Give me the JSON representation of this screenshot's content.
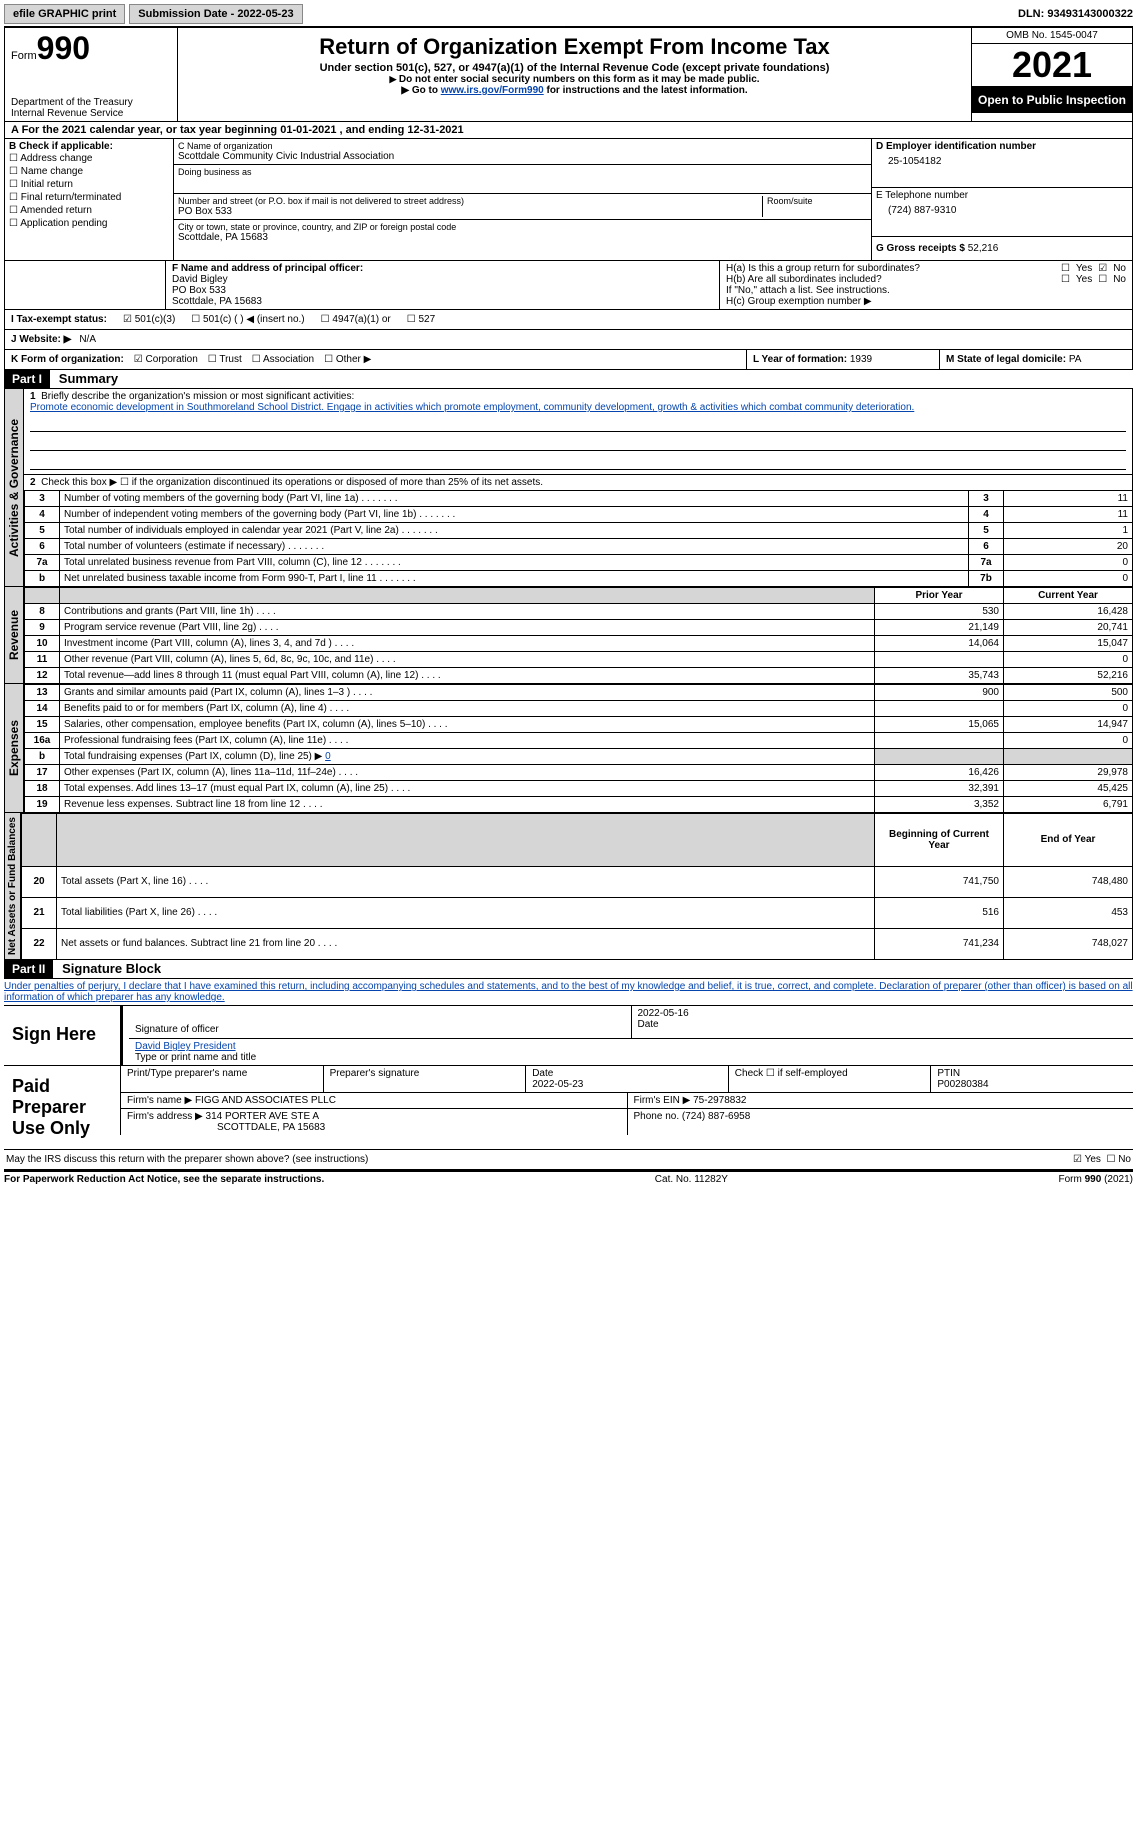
{
  "topbar": {
    "efile": "efile GRAPHIC print",
    "submission": "Submission Date - 2022-05-23",
    "dln_label": "DLN:",
    "dln": "93493143000322"
  },
  "header": {
    "form_word": "Form",
    "form_num": "990",
    "dept": "Department of the Treasury",
    "irs": "Internal Revenue Service",
    "title": "Return of Organization Exempt From Income Tax",
    "subtitle": "Under section 501(c), 527, or 4947(a)(1) of the Internal Revenue Code (except private foundations)",
    "note1": "Do not enter social security numbers on this form as it may be made public.",
    "note2_pre": "Go to ",
    "note2_link": "www.irs.gov/Form990",
    "note2_post": " for instructions and the latest information.",
    "omb": "OMB No. 1545-0047",
    "year": "2021",
    "open": "Open to Public Inspection"
  },
  "period": {
    "a_label": "A For the 2021 calendar year, or tax year beginning ",
    "begin": "01-01-2021",
    "mid": " , and ending ",
    "end": "12-31-2021"
  },
  "sectionB": {
    "title": "B Check if applicable:",
    "items": [
      "Address change",
      "Name change",
      "Initial return",
      "Final return/terminated",
      "Amended return",
      "Application pending"
    ]
  },
  "sectionC": {
    "name_lbl": "C Name of organization",
    "name": "Scottdale Community Civic Industrial Association",
    "dba_lbl": "Doing business as",
    "dba": "",
    "street_lbl": "Number and street (or P.O. box if mail is not delivered to street address)",
    "street": "PO Box 533",
    "room_lbl": "Room/suite",
    "city_lbl": "City or town, state or province, country, and ZIP or foreign postal code",
    "city": "Scottdale, PA  15683"
  },
  "sectionD": {
    "ein_lbl": "D Employer identification number",
    "ein": "25-1054182",
    "tel_lbl": "E Telephone number",
    "tel": "(724) 887-9310",
    "gross_lbl": "G Gross receipts $",
    "gross": "52,216"
  },
  "sectionF": {
    "lbl": "F Name and address of principal officer:",
    "name": "David Bigley",
    "addr1": "PO Box 533",
    "addr2": "Scottdale, PA  15683"
  },
  "sectionH": {
    "ha": "H(a)  Is this a group return for subordinates?",
    "hb": "H(b)  Are all subordinates included?",
    "hb_note": "If \"No,\" attach a list. See instructions.",
    "hc": "H(c)  Group exemption number ▶",
    "yes": "Yes",
    "no": "No"
  },
  "sectionI": {
    "lbl": "I  Tax-exempt status:",
    "opt1": "501(c)(3)",
    "opt2": "501(c) (  ) ◀ (insert no.)",
    "opt3": "4947(a)(1) or",
    "opt4": "527"
  },
  "sectionJ": {
    "lbl": "J  Website: ▶",
    "val": "N/A"
  },
  "sectionK": {
    "lbl": "K Form of organization:",
    "opts": [
      "Corporation",
      "Trust",
      "Association",
      "Other ▶"
    ]
  },
  "sectionL": {
    "lbl": "L Year of formation:",
    "val": "1939"
  },
  "sectionM": {
    "lbl": "M State of legal domicile:",
    "val": "PA"
  },
  "part1": {
    "hdr": "Part I",
    "title": "Summary",
    "line1_lbl": "Briefly describe the organization's mission or most significant activities:",
    "line1_txt": "Promote economic development in Southmoreland School District. Engage in activities which promote employment, community development, growth & activities which combat community deterioration.",
    "line2": "Check this box ▶ ☐ if the organization discontinued its operations or disposed of more than 25% of its net assets.",
    "tabs": {
      "act": "Activities & Governance",
      "rev": "Revenue",
      "exp": "Expenses",
      "net": "Net Assets or Fund Balances"
    },
    "rows_act": [
      {
        "n": "3",
        "t": "Number of voting members of the governing body (Part VI, line 1a)",
        "box": "3",
        "v": "11"
      },
      {
        "n": "4",
        "t": "Number of independent voting members of the governing body (Part VI, line 1b)",
        "box": "4",
        "v": "11"
      },
      {
        "n": "5",
        "t": "Total number of individuals employed in calendar year 2021 (Part V, line 2a)",
        "box": "5",
        "v": "1"
      },
      {
        "n": "6",
        "t": "Total number of volunteers (estimate if necessary)",
        "box": "6",
        "v": "20"
      },
      {
        "n": "7a",
        "t": "Total unrelated business revenue from Part VIII, column (C), line 12",
        "box": "7a",
        "v": "0"
      },
      {
        "n": "b",
        "t": "Net unrelated business taxable income from Form 990-T, Part I, line 11",
        "box": "7b",
        "v": "0"
      }
    ],
    "pycy": {
      "py": "Prior Year",
      "cy": "Current Year"
    },
    "rows_rev": [
      {
        "n": "8",
        "t": "Contributions and grants (Part VIII, line 1h)",
        "py": "530",
        "cy": "16,428"
      },
      {
        "n": "9",
        "t": "Program service revenue (Part VIII, line 2g)",
        "py": "21,149",
        "cy": "20,741"
      },
      {
        "n": "10",
        "t": "Investment income (Part VIII, column (A), lines 3, 4, and 7d )",
        "py": "14,064",
        "cy": "15,047"
      },
      {
        "n": "11",
        "t": "Other revenue (Part VIII, column (A), lines 5, 6d, 8c, 9c, 10c, and 11e)",
        "py": "",
        "cy": "0"
      },
      {
        "n": "12",
        "t": "Total revenue—add lines 8 through 11 (must equal Part VIII, column (A), line 12)",
        "py": "35,743",
        "cy": "52,216"
      }
    ],
    "rows_exp": [
      {
        "n": "13",
        "t": "Grants and similar amounts paid (Part IX, column (A), lines 1–3 )",
        "py": "900",
        "cy": "500"
      },
      {
        "n": "14",
        "t": "Benefits paid to or for members (Part IX, column (A), line 4)",
        "py": "",
        "cy": "0"
      },
      {
        "n": "15",
        "t": "Salaries, other compensation, employee benefits (Part IX, column (A), lines 5–10)",
        "py": "15,065",
        "cy": "14,947"
      },
      {
        "n": "16a",
        "t": "Professional fundraising fees (Part IX, column (A), line 11e)",
        "py": "",
        "cy": "0"
      },
      {
        "n": "b",
        "t": "Total fundraising expenses (Part IX, column (D), line 25) ▶",
        "val": "0",
        "gray": true
      },
      {
        "n": "17",
        "t": "Other expenses (Part IX, column (A), lines 11a–11d, 11f–24e)",
        "py": "16,426",
        "cy": "29,978"
      },
      {
        "n": "18",
        "t": "Total expenses. Add lines 13–17 (must equal Part IX, column (A), line 25)",
        "py": "32,391",
        "cy": "45,425"
      },
      {
        "n": "19",
        "t": "Revenue less expenses. Subtract line 18 from line 12",
        "py": "3,352",
        "cy": "6,791"
      }
    ],
    "bcye": {
      "b": "Beginning of Current Year",
      "e": "End of Year"
    },
    "rows_net": [
      {
        "n": "20",
        "t": "Total assets (Part X, line 16)",
        "py": "741,750",
        "cy": "748,480"
      },
      {
        "n": "21",
        "t": "Total liabilities (Part X, line 26)",
        "py": "516",
        "cy": "453"
      },
      {
        "n": "22",
        "t": "Net assets or fund balances. Subtract line 21 from line 20",
        "py": "741,234",
        "cy": "748,027"
      }
    ]
  },
  "part2": {
    "hdr": "Part II",
    "title": "Signature Block",
    "decl": "Under penalties of perjury, I declare that I have examined this return, including accompanying schedules and statements, and to the best of my knowledge and belief, it is true, correct, and complete. Declaration of preparer (other than officer) is based on all information of which preparer has any knowledge.",
    "sign_here": "Sign Here",
    "sig_officer_lbl": "Signature of officer",
    "sig_date": "2022-05-16",
    "date_lbl": "Date",
    "officer_name": "David Bigley  President",
    "type_lbl": "Type or print name and title",
    "paid": "Paid Preparer Use Only",
    "prep_name_lbl": "Print/Type preparer's name",
    "prep_sig_lbl": "Preparer's signature",
    "prep_date_lbl": "Date",
    "prep_date": "2022-05-23",
    "check_if": "Check ☐ if self-employed",
    "ptin_lbl": "PTIN",
    "ptin": "P00280384",
    "firm_name_lbl": "Firm's name   ▶",
    "firm_name": "FIGG AND ASSOCIATES PLLC",
    "firm_ein_lbl": "Firm's EIN ▶",
    "firm_ein": "75-2978832",
    "firm_addr_lbl": "Firm's address ▶",
    "firm_addr1": "314 PORTER AVE STE A",
    "firm_addr2": "SCOTTDALE, PA  15683",
    "phone_lbl": "Phone no.",
    "phone": "(724) 887-6958",
    "discuss": "May the IRS discuss this return with the preparer shown above? (see instructions)",
    "yes": "Yes",
    "no": "No"
  },
  "footer": {
    "pra": "For Paperwork Reduction Act Notice, see the separate instructions.",
    "cat": "Cat. No. 11282Y",
    "form": "Form 990 (2021)"
  }
}
